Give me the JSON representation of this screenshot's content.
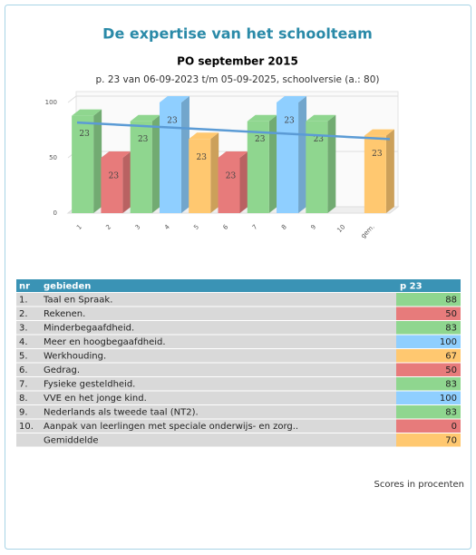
{
  "header": {
    "title": "De expertise van het schoolteam",
    "subtitle": "PO september 2015",
    "period": "p. 23 van 06-09-2023 t/m 05-09-2025, schoolversie (a.: 80)"
  },
  "chart_data": {
    "type": "bar",
    "categories": [
      "1",
      "2",
      "3",
      "4",
      "5",
      "6",
      "7",
      "8",
      "9",
      "10",
      "gem."
    ],
    "values": [
      88,
      50,
      83,
      100,
      67,
      50,
      83,
      100,
      83,
      0,
      70
    ],
    "bar_labels": [
      "23",
      "23",
      "23",
      "23",
      "23",
      "23",
      "23",
      "23",
      "23",
      null,
      "23"
    ],
    "colors": [
      "#8fd68f",
      "#e77b7b",
      "#8fd68f",
      "#8fcfff",
      "#ffc870",
      "#e77b7b",
      "#8fd68f",
      "#8fcfff",
      "#8fd68f",
      "#e77b7b",
      "#ffc870"
    ],
    "trendline": [
      79,
      64
    ],
    "trendline_color": "#5b9bd5",
    "ylim": [
      0,
      100
    ],
    "yticks": [
      0,
      50,
      100
    ],
    "grid": true
  },
  "table": {
    "columns": [
      "nr",
      "gebieden",
      "p 23"
    ],
    "rows": [
      [
        "1.",
        "Taal en Spraak.",
        "88"
      ],
      [
        "2.",
        "Rekenen.",
        "50"
      ],
      [
        "3.",
        "Minderbegaafdheid.",
        "83"
      ],
      [
        "4.",
        "Meer en hoogbegaafdheid.",
        "100"
      ],
      [
        "5.",
        "Werkhouding.",
        "67"
      ],
      [
        "6.",
        "Gedrag.",
        "50"
      ],
      [
        "7.",
        "Fysieke gesteldheid.",
        "83"
      ],
      [
        "8.",
        "VVE en het jonge kind.",
        "100"
      ],
      [
        "9.",
        "Nederlands als tweede taal (NT2).",
        "83"
      ],
      [
        "10.",
        "Aanpak van leerlingen met speciale onderwijs- en zorg..",
        "0"
      ],
      [
        null,
        "Gemiddelde",
        "70"
      ]
    ]
  },
  "footer": "Scores in procenten"
}
